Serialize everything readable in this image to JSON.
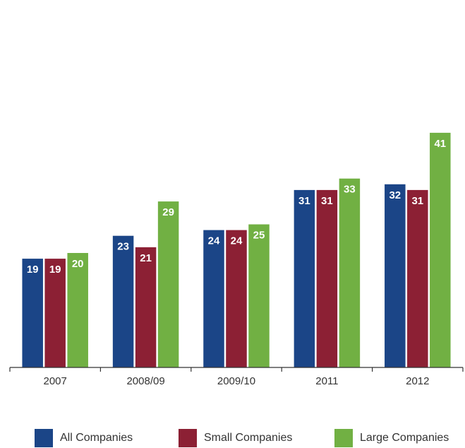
{
  "chart_data": {
    "type": "bar",
    "categories": [
      "2007",
      "2008/09",
      "2009/10",
      "2011",
      "2012"
    ],
    "series": [
      {
        "name": "All Companies",
        "color": "#1b4587",
        "values": [
          19,
          23,
          24,
          31,
          32
        ]
      },
      {
        "name": "Small Companies",
        "color": "#8c2034",
        "values": [
          19,
          21,
          24,
          31,
          31
        ]
      },
      {
        "name": "Large Companies",
        "color": "#71b043",
        "values": [
          20,
          29,
          25,
          33,
          41
        ]
      }
    ],
    "data_labels": true,
    "legend_position": "bottom",
    "grid": false
  }
}
